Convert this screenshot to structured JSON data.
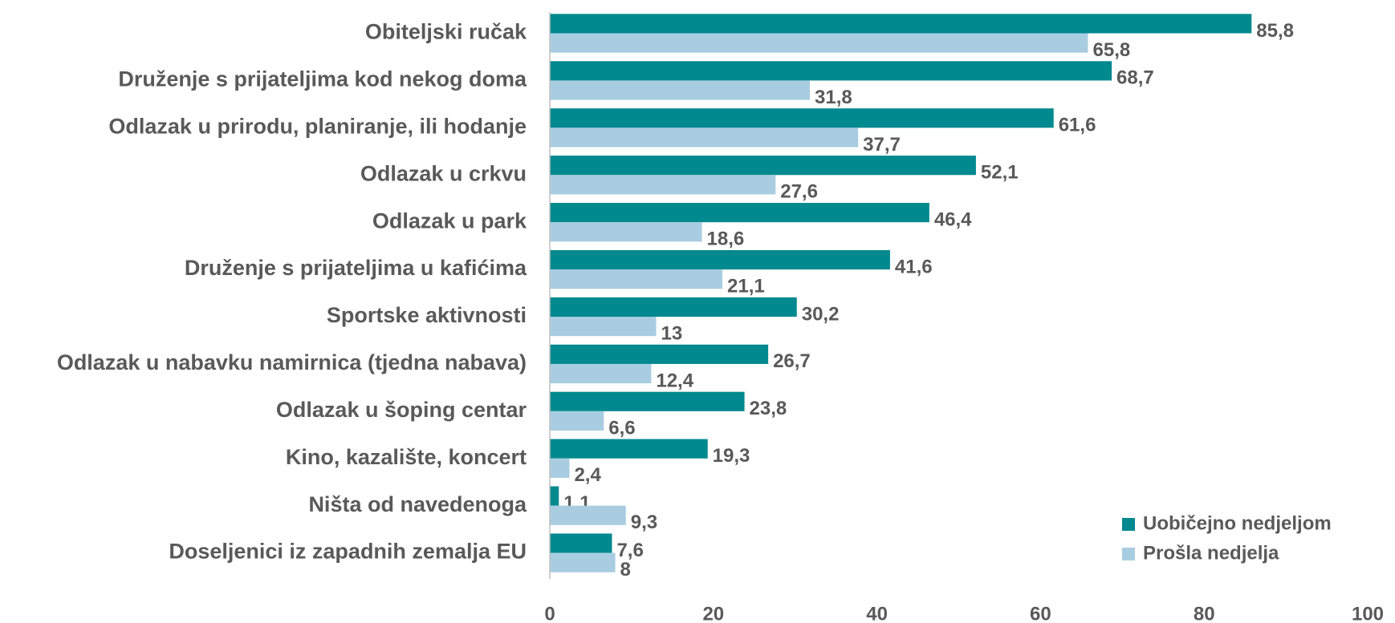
{
  "chart_data": {
    "type": "bar",
    "orientation": "horizontal",
    "categories": [
      "Obiteljski ručak",
      "Druženje s prijateljima kod nekog doma",
      "Odlazak u prirodu, planiranje, ili hodanje",
      "Odlazak u crkvu",
      "Odlazak u park",
      "Druženje s prijateljima u kafićima",
      "Sportske aktivnosti",
      "Odlazak u nabavku namirnica (tjedna nabava)",
      "Odlazak u šoping centar",
      "Kino, kazalište, koncert",
      "Ništa od navedenoga",
      "Doseljenici iz zapadnih zemalja EU"
    ],
    "series": [
      {
        "name": "Uobičejno nedjeljom",
        "color": "#00898e",
        "values": [
          85.8,
          68.7,
          61.6,
          52.1,
          46.4,
          41.6,
          30.2,
          26.7,
          23.8,
          19.3,
          1.1,
          7.6
        ],
        "value_labels": [
          "85,8",
          "68,7",
          "61,6",
          "52,1",
          "46,4",
          "41,6",
          "30,2",
          "26,7",
          "23,8",
          "19,3",
          "1,1",
          "7,6"
        ]
      },
      {
        "name": "Prošla nedjelja",
        "color": "#a8cde1",
        "values": [
          65.8,
          31.8,
          37.7,
          27.6,
          18.6,
          21.1,
          13,
          12.4,
          6.6,
          2.4,
          9.3,
          8
        ],
        "value_labels": [
          "65,8",
          "31,8",
          "37,7",
          "27,6",
          "18,6",
          "21,1",
          "13",
          "12,4",
          "6,6",
          "2,4",
          "9,3",
          "8"
        ]
      }
    ],
    "xlim": [
      0,
      100
    ],
    "xticks": [
      0,
      20,
      40,
      60,
      80,
      100
    ],
    "legend": "lower right",
    "grid": false
  }
}
